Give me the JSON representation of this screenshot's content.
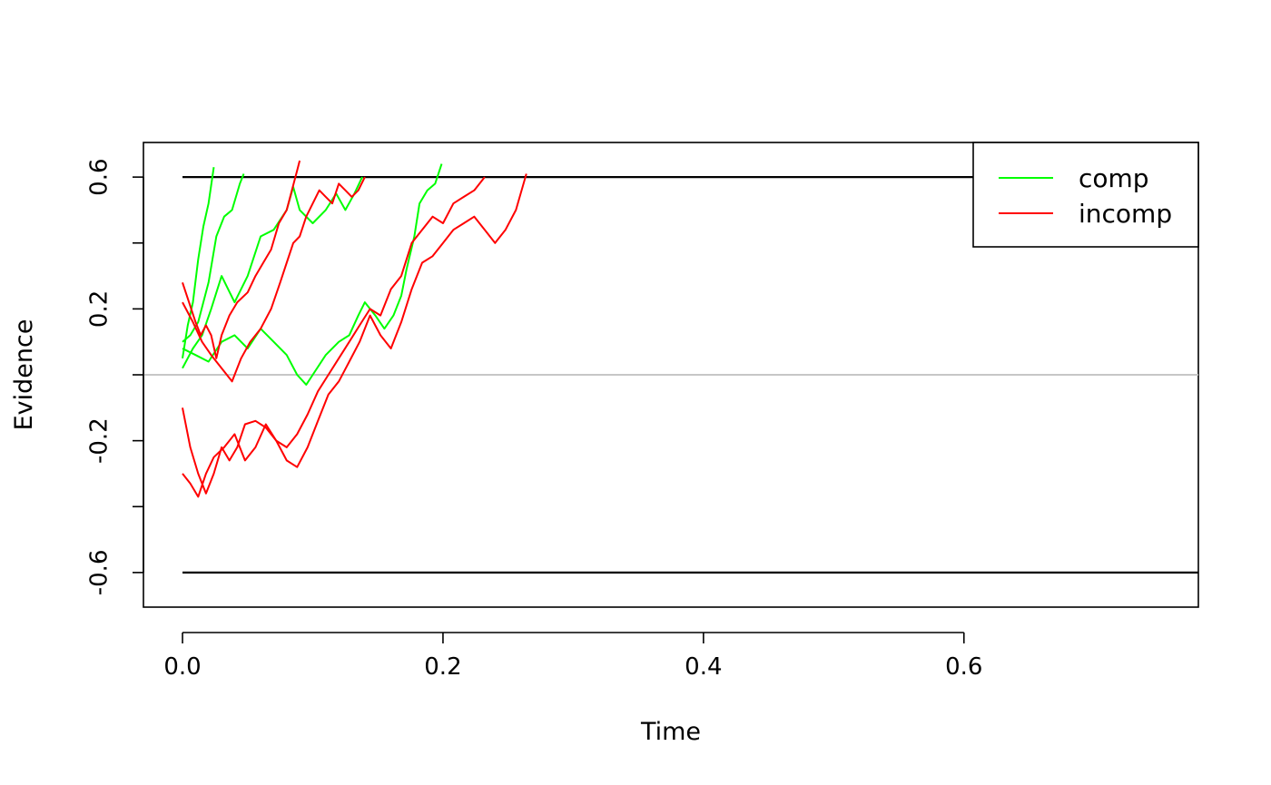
{
  "chart_data": {
    "type": "line",
    "title": "",
    "xlabel": "Time",
    "ylabel": "Evidence",
    "xlim": [
      -0.03,
      0.78
    ],
    "ylim": [
      -0.705,
      0.705
    ],
    "x_ticks": [
      "0.0",
      "0.2",
      "0.4",
      "0.6"
    ],
    "x_tick_values": [
      0.0,
      0.2,
      0.4,
      0.6
    ],
    "y_ticks": [
      "-0.6",
      "-0.2",
      "0.2",
      "0.6"
    ],
    "y_tick_values": [
      -0.6,
      -0.2,
      0.2,
      0.6
    ],
    "y_minor_tick_values": [
      -0.4,
      0.0,
      0.4
    ],
    "boundaries": [
      0.6,
      -0.6
    ],
    "reference_line": 0.0,
    "grid": false,
    "legend": {
      "placement": "top-right",
      "entries": [
        {
          "label": "comp",
          "color": "#00ff00"
        },
        {
          "label": "incomp",
          "color": "#ff0000"
        }
      ]
    },
    "series": [
      {
        "condition": "comp",
        "color": "#00ff00",
        "points": [
          [
            0.0,
            0.05
          ],
          [
            0.004,
            0.15
          ],
          [
            0.008,
            0.22
          ],
          [
            0.012,
            0.35
          ],
          [
            0.016,
            0.45
          ],
          [
            0.02,
            0.52
          ],
          [
            0.024,
            0.63
          ]
        ]
      },
      {
        "condition": "comp",
        "color": "#00ff00",
        "points": [
          [
            0.0,
            0.1
          ],
          [
            0.006,
            0.12
          ],
          [
            0.012,
            0.16
          ],
          [
            0.02,
            0.28
          ],
          [
            0.026,
            0.42
          ],
          [
            0.032,
            0.48
          ],
          [
            0.038,
            0.5
          ],
          [
            0.044,
            0.58
          ],
          [
            0.047,
            0.61
          ]
        ]
      },
      {
        "condition": "comp",
        "color": "#00ff00",
        "points": [
          [
            0.0,
            0.02
          ],
          [
            0.008,
            0.08
          ],
          [
            0.015,
            0.12
          ],
          [
            0.022,
            0.2
          ],
          [
            0.03,
            0.3
          ],
          [
            0.04,
            0.22
          ],
          [
            0.05,
            0.3
          ],
          [
            0.06,
            0.42
          ],
          [
            0.07,
            0.44
          ],
          [
            0.08,
            0.5
          ],
          [
            0.085,
            0.57
          ],
          [
            0.09,
            0.5
          ],
          [
            0.1,
            0.46
          ],
          [
            0.11,
            0.5
          ],
          [
            0.118,
            0.55
          ],
          [
            0.125,
            0.5
          ],
          [
            0.132,
            0.55
          ],
          [
            0.138,
            0.6
          ]
        ]
      },
      {
        "condition": "comp",
        "color": "#00ff00",
        "points": [
          [
            0.0,
            0.08
          ],
          [
            0.01,
            0.06
          ],
          [
            0.02,
            0.04
          ],
          [
            0.03,
            0.1
          ],
          [
            0.04,
            0.12
          ],
          [
            0.05,
            0.08
          ],
          [
            0.06,
            0.14
          ],
          [
            0.07,
            0.1
          ],
          [
            0.08,
            0.06
          ],
          [
            0.088,
            0.0
          ],
          [
            0.095,
            -0.03
          ],
          [
            0.1,
            0.0
          ],
          [
            0.11,
            0.06
          ],
          [
            0.12,
            0.1
          ],
          [
            0.128,
            0.12
          ],
          [
            0.135,
            0.18
          ],
          [
            0.14,
            0.22
          ],
          [
            0.148,
            0.18
          ],
          [
            0.155,
            0.14
          ],
          [
            0.162,
            0.18
          ],
          [
            0.168,
            0.24
          ],
          [
            0.172,
            0.32
          ],
          [
            0.178,
            0.42
          ],
          [
            0.182,
            0.52
          ],
          [
            0.188,
            0.56
          ],
          [
            0.194,
            0.58
          ],
          [
            0.199,
            0.64
          ]
        ]
      },
      {
        "condition": "incomp",
        "color": "#ff0000",
        "points": [
          [
            0.0,
            0.28
          ],
          [
            0.005,
            0.22
          ],
          [
            0.01,
            0.16
          ],
          [
            0.014,
            0.12
          ],
          [
            0.018,
            0.15
          ],
          [
            0.022,
            0.12
          ],
          [
            0.026,
            0.05
          ],
          [
            0.03,
            0.12
          ],
          [
            0.036,
            0.18
          ],
          [
            0.042,
            0.22
          ],
          [
            0.05,
            0.25
          ],
          [
            0.056,
            0.3
          ],
          [
            0.062,
            0.34
          ],
          [
            0.068,
            0.38
          ],
          [
            0.074,
            0.46
          ],
          [
            0.08,
            0.5
          ],
          [
            0.084,
            0.56
          ],
          [
            0.088,
            0.62
          ],
          [
            0.09,
            0.65
          ]
        ]
      },
      {
        "condition": "incomp",
        "color": "#ff0000",
        "points": [
          [
            0.0,
            0.22
          ],
          [
            0.008,
            0.16
          ],
          [
            0.015,
            0.1
          ],
          [
            0.022,
            0.06
          ],
          [
            0.03,
            0.02
          ],
          [
            0.038,
            -0.02
          ],
          [
            0.045,
            0.05
          ],
          [
            0.052,
            0.1
          ],
          [
            0.06,
            0.14
          ],
          [
            0.068,
            0.2
          ],
          [
            0.075,
            0.28
          ],
          [
            0.08,
            0.34
          ],
          [
            0.085,
            0.4
          ],
          [
            0.09,
            0.42
          ],
          [
            0.095,
            0.48
          ],
          [
            0.1,
            0.52
          ],
          [
            0.105,
            0.56
          ],
          [
            0.11,
            0.54
          ],
          [
            0.115,
            0.52
          ],
          [
            0.12,
            0.58
          ],
          [
            0.125,
            0.56
          ],
          [
            0.13,
            0.54
          ],
          [
            0.135,
            0.56
          ],
          [
            0.14,
            0.6
          ]
        ]
      },
      {
        "condition": "incomp",
        "color": "#ff0000",
        "points": [
          [
            0.0,
            -0.1
          ],
          [
            0.006,
            -0.22
          ],
          [
            0.012,
            -0.3
          ],
          [
            0.018,
            -0.36
          ],
          [
            0.024,
            -0.3
          ],
          [
            0.03,
            -0.22
          ],
          [
            0.036,
            -0.26
          ],
          [
            0.042,
            -0.22
          ],
          [
            0.048,
            -0.15
          ],
          [
            0.056,
            -0.14
          ],
          [
            0.064,
            -0.16
          ],
          [
            0.072,
            -0.2
          ],
          [
            0.08,
            -0.22
          ],
          [
            0.088,
            -0.18
          ],
          [
            0.096,
            -0.12
          ],
          [
            0.104,
            -0.05
          ],
          [
            0.112,
            0.0
          ],
          [
            0.12,
            0.05
          ],
          [
            0.128,
            0.1
          ],
          [
            0.136,
            0.15
          ],
          [
            0.144,
            0.2
          ],
          [
            0.152,
            0.18
          ],
          [
            0.16,
            0.26
          ],
          [
            0.168,
            0.3
          ],
          [
            0.176,
            0.4
          ],
          [
            0.184,
            0.44
          ],
          [
            0.192,
            0.48
          ],
          [
            0.2,
            0.46
          ],
          [
            0.208,
            0.52
          ],
          [
            0.216,
            0.54
          ],
          [
            0.224,
            0.56
          ],
          [
            0.232,
            0.6
          ]
        ]
      },
      {
        "condition": "incomp",
        "color": "#ff0000",
        "points": [
          [
            0.0,
            -0.3
          ],
          [
            0.006,
            -0.33
          ],
          [
            0.012,
            -0.37
          ],
          [
            0.018,
            -0.3
          ],
          [
            0.024,
            -0.25
          ],
          [
            0.032,
            -0.22
          ],
          [
            0.04,
            -0.18
          ],
          [
            0.048,
            -0.26
          ],
          [
            0.056,
            -0.22
          ],
          [
            0.064,
            -0.15
          ],
          [
            0.072,
            -0.2
          ],
          [
            0.08,
            -0.26
          ],
          [
            0.088,
            -0.28
          ],
          [
            0.096,
            -0.22
          ],
          [
            0.104,
            -0.14
          ],
          [
            0.112,
            -0.06
          ],
          [
            0.12,
            -0.02
          ],
          [
            0.128,
            0.04
          ],
          [
            0.136,
            0.1
          ],
          [
            0.144,
            0.18
          ],
          [
            0.152,
            0.12
          ],
          [
            0.16,
            0.08
          ],
          [
            0.168,
            0.16
          ],
          [
            0.176,
            0.26
          ],
          [
            0.184,
            0.34
          ],
          [
            0.192,
            0.36
          ],
          [
            0.2,
            0.4
          ],
          [
            0.208,
            0.44
          ],
          [
            0.216,
            0.46
          ],
          [
            0.224,
            0.48
          ],
          [
            0.232,
            0.44
          ],
          [
            0.24,
            0.4
          ],
          [
            0.248,
            0.44
          ],
          [
            0.256,
            0.5
          ],
          [
            0.264,
            0.61
          ]
        ]
      }
    ]
  }
}
